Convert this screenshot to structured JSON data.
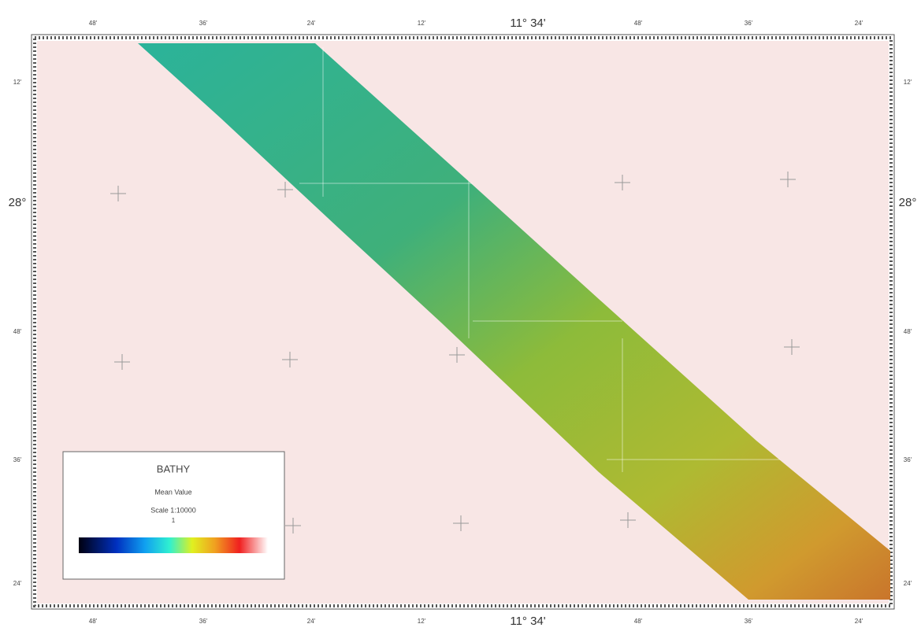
{
  "map": {
    "top_labels": [
      "48'",
      "36'",
      "24'",
      "12'",
      "11° 34'",
      "48'",
      "36'",
      "24'"
    ],
    "bottom_labels": [
      "48'",
      "36'",
      "24'",
      "12'",
      "11° 34'",
      "48'",
      "36'",
      "24'"
    ],
    "left_labels": [
      "12'",
      "28°",
      "48'",
      "36'",
      "24'"
    ],
    "right_labels": [
      "12'",
      "28°",
      "48'",
      "36'",
      "24'"
    ],
    "legend": {
      "title": "BATHY",
      "subtitle": "Mean Value",
      "scale": "Scale 1:10000",
      "unit": "1"
    }
  }
}
